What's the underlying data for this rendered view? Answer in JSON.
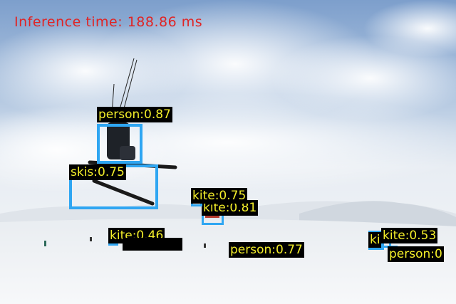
{
  "overlay": {
    "inference_time": "Inference time: 188.86 ms"
  },
  "detections": [
    {
      "label": "person:0.87"
    },
    {
      "label": "skis:0.75"
    },
    {
      "label": "kite:0.75"
    },
    {
      "label": "kite:0.81"
    },
    {
      "label": "kite:0.46"
    },
    {
      "label": "person:0.77"
    },
    {
      "label": "kite:0.53"
    },
    {
      "label": "person:0"
    },
    {
      "label": "ki"
    }
  ],
  "colors": {
    "box": "#2fa6f2",
    "label_text": "#f3ee2a",
    "label_bg": "#000000",
    "overlay_text": "#e02424"
  }
}
